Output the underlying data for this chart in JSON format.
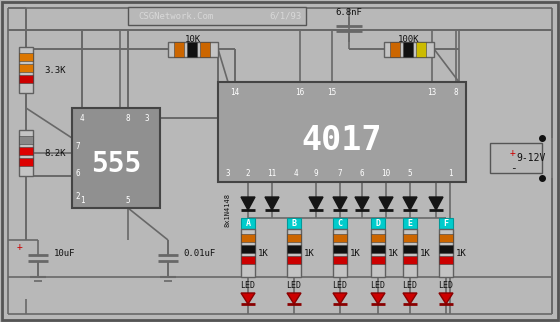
{
  "bg_color": "#b8b8b8",
  "wire_color": "#686868",
  "ic_555_color": "#909090",
  "ic_4017_color": "#a0a0a0",
  "title": "CSGNetwork.Com",
  "date": "6/1/93",
  "cap_6_8": "6.8nF",
  "res_10k": "10K",
  "res_100k": "100K",
  "res_3_3k": "3.3K",
  "res_8_2k": "8.2K",
  "cap_10uf": "10uF",
  "cap_001uf": "0.01uF",
  "ic_555_label": "555",
  "ic_4017_label": "4017",
  "voltage": "9-12V",
  "diode_label": "8x1N4148",
  "led_labels": [
    "A",
    "B",
    "C",
    "D",
    "E",
    "F"
  ],
  "bands_3_3k": [
    "#dd7700",
    "#dd7700",
    "#cc0000"
  ],
  "bands_8_2k": [
    "#888888",
    "#dd0000",
    "#dd0000"
  ],
  "bands_10k": [
    "#cc6600",
    "#111111",
    "#cc6600"
  ],
  "bands_100k": [
    "#cc6600",
    "#111111",
    "#ccbb00"
  ],
  "bands_1k": [
    "#cc6600",
    "#111111",
    "#cc0000"
  ],
  "cyan_label": "#00cccc",
  "led_red": "#cc0000",
  "dot_color": "#111111"
}
